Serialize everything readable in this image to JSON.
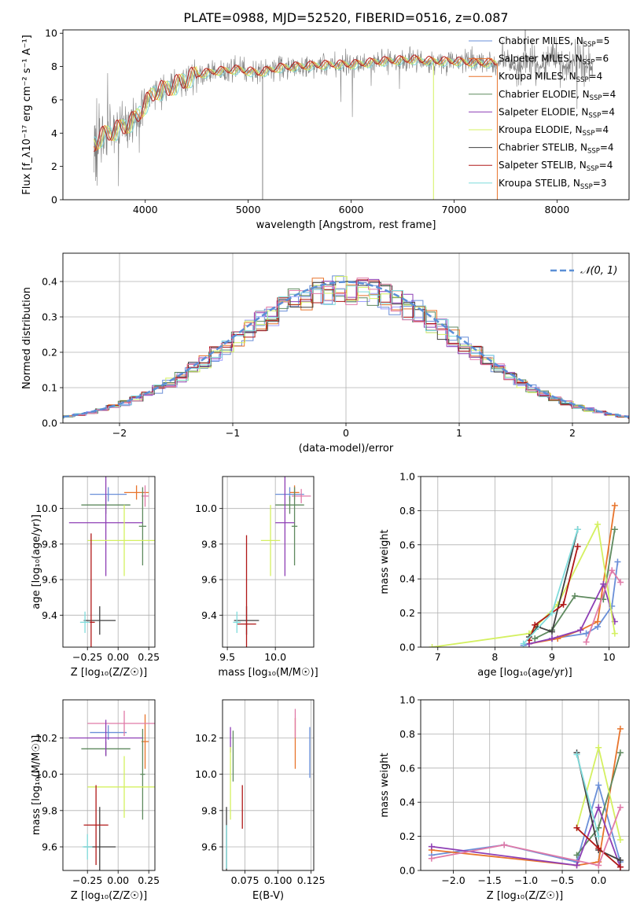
{
  "title": "PLATE=0988, MJD=52520, FIBERID=0516, z=0.087",
  "colors": {
    "spec": "#808080",
    "m1": "#6a8fd8",
    "m2": "#e8742c",
    "m3": "#a0a0ff",
    "m4": "#5f8a5f",
    "m5": "#8e3fb5",
    "m6": "#d4f060",
    "m7": "#404040",
    "m8": "#b01818",
    "m9": "#7fdcdc",
    "pink": "#e07aa8",
    "gauss": "#5b8fd6"
  },
  "chart_data": [
    {
      "type": "line",
      "id": "spectrum",
      "xlabel": "wavelength [Angstrom, rest frame]",
      "ylabel": "Flux [f_λ10⁻¹⁷ erg cm⁻² s⁻¹ A⁻¹]",
      "xlim": [
        3200,
        8700
      ],
      "ylim": [
        0,
        10.2
      ],
      "xticks": [
        4000,
        5000,
        6000,
        7000,
        8000
      ],
      "yticks": [
        0,
        2,
        4,
        6,
        8,
        10
      ],
      "legend_position": "right",
      "legend": [
        {
          "name": "Chabrier MILES, N_SSP=5",
          "color_key": "m1"
        },
        {
          "name": "Salpeter MILES, N_SSP=6",
          "color_key": "m2"
        },
        {
          "name": "Kroupa MILES, N_SSP=4",
          "color_key": "m2"
        },
        {
          "name": "Chabrier ELODIE, N_SSP=4",
          "color_key": "m4"
        },
        {
          "name": "Salpeter ELODIE, N_SSP=4",
          "color_key": "m5"
        },
        {
          "name": "Kroupa ELODIE, N_SSP=4",
          "color_key": "m6"
        },
        {
          "name": "Chabrier STELIB, N_SSP=4",
          "color_key": "m7"
        },
        {
          "name": "Salpeter STELIB, N_SSP=4",
          "color_key": "m8"
        },
        {
          "name": "Kroupa STELIB, N_SSP=3",
          "color_key": "m9"
        }
      ],
      "model_continuum": {
        "x": [
          3500,
          3600,
          3700,
          3800,
          3900,
          4000,
          4100,
          4200,
          4300,
          4400,
          4500,
          4700,
          4900,
          5100,
          5300,
          5500,
          5800,
          6000,
          6300,
          6600,
          6800,
          7000,
          7200,
          7400
        ],
        "y": [
          3.3,
          3.9,
          4.1,
          4.4,
          4.8,
          5.7,
          6.5,
          6.6,
          6.9,
          7.2,
          7.5,
          7.7,
          7.8,
          7.6,
          7.9,
          8.0,
          8.1,
          8.1,
          8.3,
          8.4,
          8.3,
          8.3,
          8.2,
          8.2
        ]
      }
    },
    {
      "type": "bar",
      "id": "residuals",
      "xlabel": "(data-model)/error",
      "ylabel": "Normed distribution",
      "xlim": [
        -2.5,
        2.5
      ],
      "ylim": [
        0,
        0.48
      ],
      "xticks": [
        -2,
        -1,
        0,
        1,
        2
      ],
      "yticks": [
        0.0,
        0.1,
        0.2,
        0.3,
        0.4
      ],
      "grid": true,
      "legend_position": "top-right",
      "gaussian_label": "𝒩(0, 1)"
    },
    {
      "type": "scatter",
      "id": "age-vs-Z",
      "xlabel": "Z [log₁₀(Z/Z☉)]",
      "ylabel": "age  [log₁₀(age/yr)]",
      "xlim": [
        -0.45,
        0.3
      ],
      "ylim": [
        9.22,
        10.18
      ],
      "xticks": [
        -0.25,
        0.0,
        0.25
      ],
      "yticks": [
        9.4,
        9.6,
        9.8,
        10.0
      ],
      "grid": true,
      "points": [
        {
          "x": -0.08,
          "y": 10.08,
          "xerr": 0.15,
          "yerr": 0.04,
          "color_key": "m1"
        },
        {
          "x": 0.15,
          "y": 10.09,
          "xerr": 0.1,
          "yerr": 0.04,
          "color_key": "m2"
        },
        {
          "x": 0.22,
          "y": 10.07,
          "xerr": 0.03,
          "yerr": 0.06,
          "color_key": "pink"
        },
        {
          "x": -0.1,
          "y": 10.02,
          "xerr": 0.2,
          "yerr": 0.05,
          "color_key": "m4"
        },
        {
          "x": 0.2,
          "y": 9.9,
          "xerr": 0.03,
          "yerr": 0.22,
          "color_key": "m4"
        },
        {
          "x": -0.1,
          "y": 9.92,
          "xerr": 0.3,
          "yerr": 0.3,
          "color_key": "m5"
        },
        {
          "x": 0.05,
          "y": 9.82,
          "xerr": 0.3,
          "yerr": 0.2,
          "color_key": "m6"
        },
        {
          "x": -0.15,
          "y": 9.37,
          "xerr": 0.13,
          "yerr": 0.08,
          "color_key": "m7"
        },
        {
          "x": -0.22,
          "y": 9.36,
          "xerr": 0.03,
          "yerr": 0.5,
          "color_key": "m8"
        },
        {
          "x": -0.27,
          "y": 9.36,
          "xerr": 0.04,
          "yerr": 0.06,
          "color_key": "m9"
        }
      ]
    },
    {
      "type": "scatter",
      "id": "age-vs-mass",
      "xlabel": "mass [log₁₀(M/M☉)]",
      "ylabel": "",
      "xlim": [
        9.45,
        10.4
      ],
      "ylim": [
        9.22,
        10.18
      ],
      "xticks": [
        9.5,
        10.0
      ],
      "yticks": [
        9.4,
        9.6,
        9.8,
        10.0
      ],
      "grid": true,
      "points": [
        {
          "x": 10.15,
          "y": 10.08,
          "xerr": 0.15,
          "yerr": 0.04,
          "color_key": "m1"
        },
        {
          "x": 10.2,
          "y": 10.09,
          "xerr": 0.05,
          "yerr": 0.04,
          "color_key": "m2"
        },
        {
          "x": 10.27,
          "y": 10.07,
          "xerr": 0.1,
          "yerr": 0.04,
          "color_key": "pink"
        },
        {
          "x": 10.15,
          "y": 10.02,
          "xerr": 0.15,
          "yerr": 0.05,
          "color_key": "m4"
        },
        {
          "x": 10.2,
          "y": 9.9,
          "xerr": 0.03,
          "yerr": 0.22,
          "color_key": "m4"
        },
        {
          "x": 10.1,
          "y": 9.92,
          "xerr": 0.1,
          "yerr": 0.3,
          "color_key": "m5"
        },
        {
          "x": 9.95,
          "y": 9.82,
          "xerr": 0.1,
          "yerr": 0.2,
          "color_key": "m6"
        },
        {
          "x": 9.7,
          "y": 9.37,
          "xerr": 0.13,
          "yerr": 0.08,
          "color_key": "m7"
        },
        {
          "x": 9.7,
          "y": 9.35,
          "xerr": 0.1,
          "yerr": 0.5,
          "color_key": "m8"
        },
        {
          "x": 9.6,
          "y": 9.36,
          "xerr": 0.04,
          "yerr": 0.06,
          "color_key": "m9"
        }
      ]
    },
    {
      "type": "line",
      "id": "massweight-vs-age",
      "xlabel": "age  [log₁₀(age/yr)]",
      "ylabel": "mass weight",
      "xlim": [
        6.7,
        10.35
      ],
      "ylim": [
        0,
        1.0
      ],
      "xticks": [
        7,
        8,
        9,
        10
      ],
      "yticks": [
        0.0,
        0.2,
        0.4,
        0.6,
        0.8,
        1.0
      ],
      "grid": true,
      "series": [
        {
          "color_key": "m1",
          "x": [
            8.5,
            9.0,
            9.6,
            9.8,
            10.05,
            10.15
          ],
          "y": [
            0.01,
            0.05,
            0.08,
            0.12,
            0.24,
            0.5
          ]
        },
        {
          "color_key": "m2",
          "x": [
            8.6,
            9.1,
            9.5,
            9.8,
            10.1
          ],
          "y": [
            0.02,
            0.05,
            0.1,
            0.15,
            0.83
          ]
        },
        {
          "color_key": "m4",
          "x": [
            8.7,
            9.0,
            9.4,
            9.9,
            10.1
          ],
          "y": [
            0.05,
            0.1,
            0.3,
            0.28,
            0.69
          ]
        },
        {
          "color_key": "m5",
          "x": [
            8.6,
            9.0,
            9.5,
            9.9,
            10.1
          ],
          "y": [
            0.02,
            0.05,
            0.1,
            0.37,
            0.15
          ]
        },
        {
          "color_key": "m6",
          "x": [
            6.9,
            8.6,
            9.1,
            9.8,
            10.1
          ],
          "y": [
            0.0,
            0.08,
            0.25,
            0.72,
            0.08
          ]
        },
        {
          "color_key": "m7",
          "x": [
            8.6,
            8.75,
            9.0,
            9.45
          ],
          "y": [
            0.06,
            0.12,
            0.09,
            0.69
          ]
        },
        {
          "color_key": "m8",
          "x": [
            8.6,
            8.7,
            9.2,
            9.45
          ],
          "y": [
            0.04,
            0.13,
            0.25,
            0.59
          ]
        },
        {
          "color_key": "m9",
          "x": [
            8.5,
            9.0,
            9.45
          ],
          "y": [
            0.02,
            0.2,
            0.69
          ]
        },
        {
          "color_key": "pink",
          "x": [
            9.6,
            10.05,
            10.2
          ],
          "y": [
            0.03,
            0.45,
            0.38
          ]
        }
      ]
    },
    {
      "type": "scatter",
      "id": "mass-vs-Z",
      "xlabel": "Z [log₁₀(Z/Z☉)]",
      "ylabel": "mass [log₁₀(M/M☉)]",
      "xlim": [
        -0.45,
        0.3
      ],
      "ylim": [
        9.47,
        10.41
      ],
      "xticks": [
        -0.25,
        0.0,
        0.25
      ],
      "yticks": [
        9.6,
        9.8,
        10.0,
        10.2
      ],
      "grid": true,
      "points": [
        {
          "x": -0.08,
          "y": 10.23,
          "xerr": 0.15,
          "yerr": 0.04,
          "color_key": "m1"
        },
        {
          "x": 0.22,
          "y": 10.18,
          "xerr": 0.03,
          "yerr": 0.15,
          "color_key": "m2"
        },
        {
          "x": 0.05,
          "y": 10.28,
          "xerr": 0.3,
          "yerr": 0.07,
          "color_key": "pink"
        },
        {
          "x": -0.1,
          "y": 10.14,
          "xerr": 0.2,
          "yerr": 0.04,
          "color_key": "m4"
        },
        {
          "x": 0.2,
          "y": 10.0,
          "xerr": 0.02,
          "yerr": 0.25,
          "color_key": "m4"
        },
        {
          "x": -0.1,
          "y": 10.2,
          "xerr": 0.3,
          "yerr": 0.1,
          "color_key": "m5"
        },
        {
          "x": 0.05,
          "y": 9.93,
          "xerr": 0.3,
          "yerr": 0.17,
          "color_key": "m6"
        },
        {
          "x": -0.15,
          "y": 9.6,
          "xerr": 0.13,
          "yerr": 0.22,
          "color_key": "m7"
        },
        {
          "x": -0.18,
          "y": 9.72,
          "xerr": 0.1,
          "yerr": 0.22,
          "color_key": "m8"
        },
        {
          "x": -0.25,
          "y": 9.6,
          "xerr": 0.04,
          "yerr": 0.07,
          "color_key": "m9"
        }
      ]
    },
    {
      "type": "scatter",
      "id": "mass-vs-EBV",
      "xlabel": "E(B-V)",
      "ylabel": "",
      "xlim": [
        0.058,
        0.127
      ],
      "ylim": [
        9.47,
        10.41
      ],
      "xticks": [
        0.075,
        0.1,
        0.125
      ],
      "yticks": [
        9.6,
        9.8,
        10.0,
        10.2
      ],
      "grid": true,
      "points": [
        {
          "x": 0.124,
          "y": 10.12,
          "yerr": 0.14,
          "color_key": "m1"
        },
        {
          "x": 0.113,
          "y": 10.17,
          "yerr": 0.14,
          "color_key": "m2"
        },
        {
          "x": 0.113,
          "y": 10.28,
          "yerr": 0.08,
          "color_key": "pink"
        },
        {
          "x": 0.066,
          "y": 10.1,
          "yerr": 0.14,
          "color_key": "m4"
        },
        {
          "x": 0.064,
          "y": 10.19,
          "yerr": 0.07,
          "color_key": "m5"
        },
        {
          "x": 0.064,
          "y": 9.95,
          "yerr": 0.2,
          "color_key": "m6"
        },
        {
          "x": 0.061,
          "y": 9.62,
          "yerr": 0.2,
          "color_key": "m7"
        },
        {
          "x": 0.073,
          "y": 9.82,
          "yerr": 0.12,
          "color_key": "m8"
        },
        {
          "x": 0.061,
          "y": 9.6,
          "yerr": 0.12,
          "color_key": "m9"
        }
      ]
    },
    {
      "type": "line",
      "id": "massweight-vs-Z",
      "xlabel": "Z [log₁₀(Z/Z☉)]",
      "ylabel": "mass weight",
      "xlim": [
        -2.45,
        0.42
      ],
      "ylim": [
        0,
        1.0
      ],
      "xticks": [
        -2.0,
        -1.5,
        -1.0,
        -0.5,
        0.0
      ],
      "yticks": [
        0.0,
        0.2,
        0.4,
        0.6,
        0.8,
        1.0
      ],
      "grid": true,
      "series": [
        {
          "color_key": "m1",
          "x": [
            -2.3,
            -1.3,
            -0.3,
            0.0,
            0.3
          ],
          "y": [
            0.09,
            0.15,
            0.05,
            0.5,
            0.05
          ]
        },
        {
          "color_key": "m2",
          "x": [
            -2.3,
            -0.3,
            0.0,
            0.3
          ],
          "y": [
            0.12,
            0.03,
            0.05,
            0.83
          ]
        },
        {
          "color_key": "m4",
          "x": [
            -0.3,
            0.0,
            0.3
          ],
          "y": [
            0.09,
            0.25,
            0.69
          ]
        },
        {
          "color_key": "m5",
          "x": [
            -2.3,
            -0.3,
            0.0,
            0.3
          ],
          "y": [
            0.14,
            0.03,
            0.37,
            0.02
          ]
        },
        {
          "color_key": "m6",
          "x": [
            -0.3,
            0.0,
            0.3
          ],
          "y": [
            0.25,
            0.72,
            0.18
          ]
        },
        {
          "color_key": "m7",
          "x": [
            -0.3,
            0.0,
            0.3
          ],
          "y": [
            0.69,
            0.12,
            0.06
          ]
        },
        {
          "color_key": "m8",
          "x": [
            -0.3,
            0.0,
            0.3
          ],
          "y": [
            0.25,
            0.13,
            0.02
          ]
        },
        {
          "color_key": "m9",
          "x": [
            -0.3,
            0.0
          ],
          "y": [
            0.68,
            0.2
          ]
        },
        {
          "color_key": "pink",
          "x": [
            -2.3,
            -1.3,
            0.0,
            0.3
          ],
          "y": [
            0.07,
            0.15,
            0.03,
            0.37
          ]
        }
      ]
    }
  ]
}
